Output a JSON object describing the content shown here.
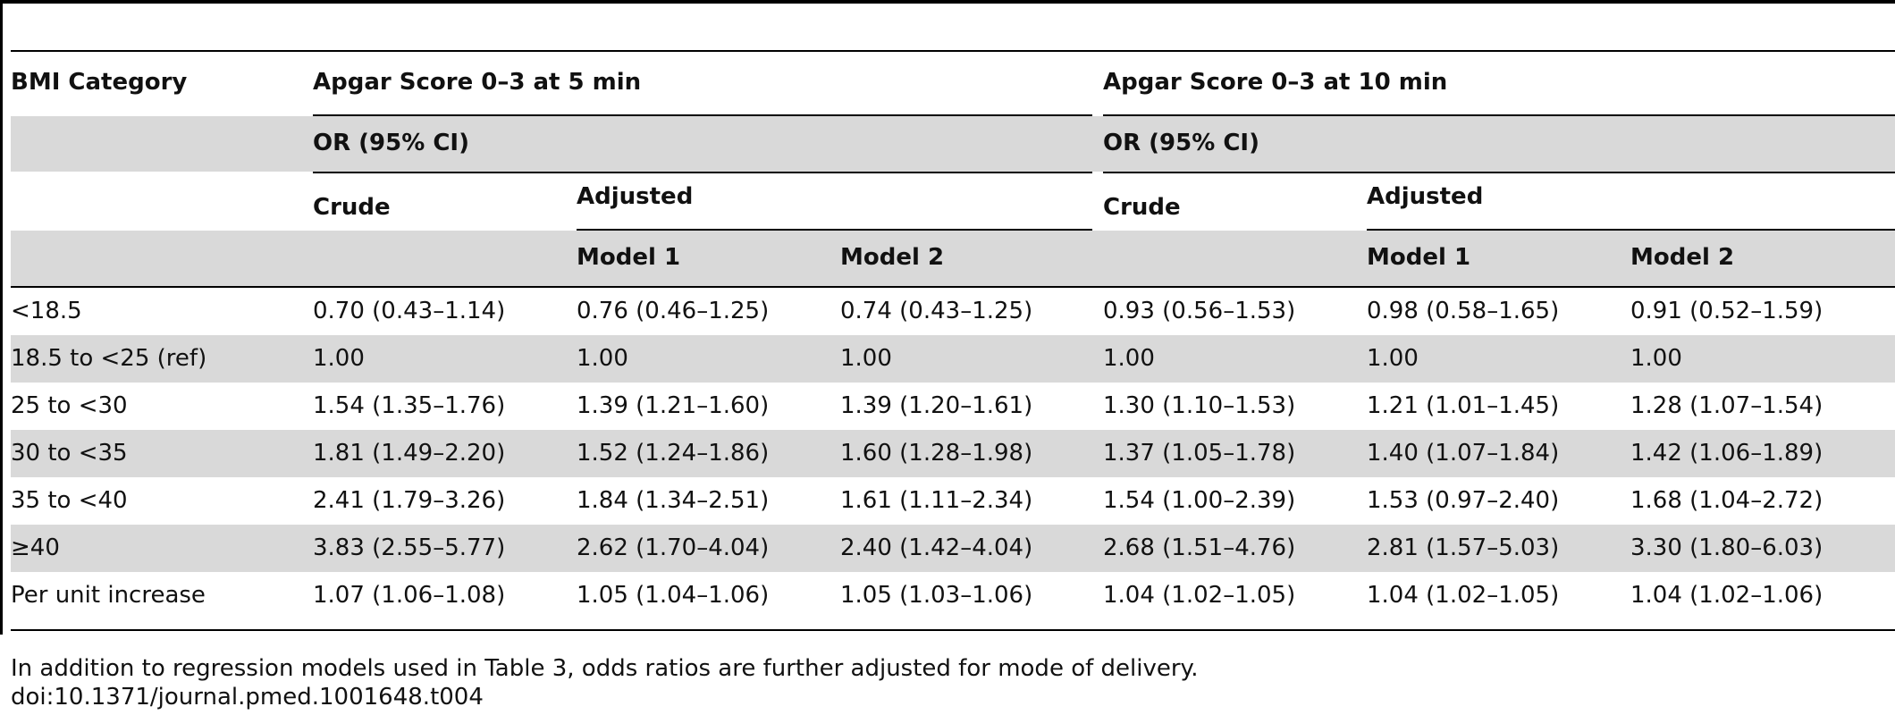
{
  "table": {
    "header": {
      "bmi_category": "BMI Category",
      "group_5min": "Apgar Score 0–3 at 5 min",
      "group_10min": "Apgar Score 0–3 at 10 min",
      "or_label": "OR (95% CI)",
      "crude": "Crude",
      "adjusted": "Adjusted",
      "model1": "Model 1",
      "model2": "Model 2"
    },
    "rows": [
      {
        "label": "<18.5",
        "values": [
          "0.70 (0.43–1.14)",
          "0.76 (0.46–1.25)",
          "0.74 (0.43–1.25)",
          "0.93 (0.56–1.53)",
          "0.98 (0.58–1.65)",
          "0.91 (0.52–1.59)"
        ]
      },
      {
        "label": "18.5 to <25 (ref)",
        "values": [
          "1.00",
          "1.00",
          "1.00",
          "1.00",
          "1.00",
          "1.00"
        ]
      },
      {
        "label": "25 to <30",
        "values": [
          "1.54 (1.35–1.76)",
          "1.39 (1.21–1.60)",
          "1.39 (1.20–1.61)",
          "1.30 (1.10–1.53)",
          "1.21 (1.01–1.45)",
          "1.28 (1.07–1.54)"
        ]
      },
      {
        "label": "30 to <35",
        "values": [
          "1.81 (1.49–2.20)",
          "1.52 (1.24–1.86)",
          "1.60 (1.28–1.98)",
          "1.37 (1.05–1.78)",
          "1.40 (1.07–1.84)",
          "1.42 (1.06–1.89)"
        ]
      },
      {
        "label": "35 to <40",
        "values": [
          "2.41 (1.79–3.26)",
          "1.84 (1.34–2.51)",
          "1.61 (1.11–2.34)",
          "1.54 (1.00–2.39)",
          "1.53 (0.97–2.40)",
          "1.68 (1.04–2.72)"
        ]
      },
      {
        "label": "≥40",
        "values": [
          "3.83 (2.55–5.77)",
          "2.62 (1.70–4.04)",
          "2.40 (1.42–4.04)",
          "2.68 (1.51–4.76)",
          "2.81 (1.57–5.03)",
          "3.30 (1.80–6.03)"
        ]
      },
      {
        "label": "Per unit increase",
        "values": [
          "1.07 (1.06–1.08)",
          "1.05 (1.04–1.06)",
          "1.05 (1.03–1.06)",
          "1.04 (1.02–1.05)",
          "1.04 (1.02–1.05)",
          "1.04 (1.02–1.06)"
        ]
      }
    ],
    "footnote": "In addition to regression models used in Table 3, odds ratios are further adjusted for mode of delivery.",
    "doi": "doi:10.1371/journal.pmed.1001648.t004"
  },
  "colors": {
    "band": "#d9d9d9",
    "rule": "#000000",
    "text": "#111111"
  }
}
